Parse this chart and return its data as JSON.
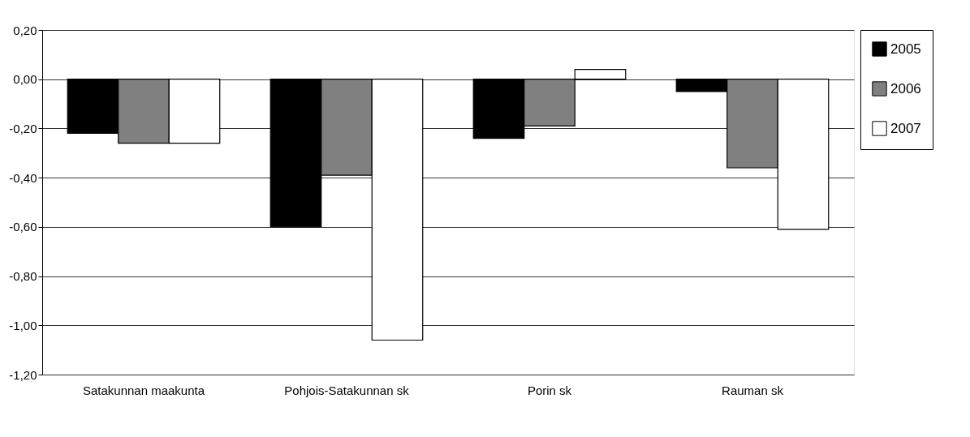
{
  "chart_data": {
    "type": "bar",
    "categories": [
      "Satakunnan maakunta",
      "Pohjois-Satakunnan sk",
      "Porin sk",
      "Rauman sk"
    ],
    "series": [
      {
        "name": "2005",
        "color": "#000000",
        "values": [
          -0.22,
          -0.6,
          -0.24,
          -0.05
        ]
      },
      {
        "name": "2006",
        "color": "#808080",
        "values": [
          -0.26,
          -0.39,
          -0.19,
          -0.36
        ]
      },
      {
        "name": "2007",
        "color": "#ffffff",
        "values": [
          -0.26,
          -1.06,
          0.04,
          -0.61
        ]
      }
    ],
    "ylim": [
      -1.2,
      0.2
    ],
    "yticks": [
      {
        "value": -1.2,
        "label": "-1,20"
      },
      {
        "value": -1.0,
        "label": "-1,00"
      },
      {
        "value": -0.8,
        "label": "-0,80"
      },
      {
        "value": -0.6,
        "label": "-0,60"
      },
      {
        "value": -0.4,
        "label": "-0,40"
      },
      {
        "value": -0.2,
        "label": "-0,20"
      },
      {
        "value": 0.0,
        "label": "0,00"
      },
      {
        "value": 0.2,
        "label": "0,20"
      }
    ],
    "grid": "y",
    "legend": "right"
  }
}
